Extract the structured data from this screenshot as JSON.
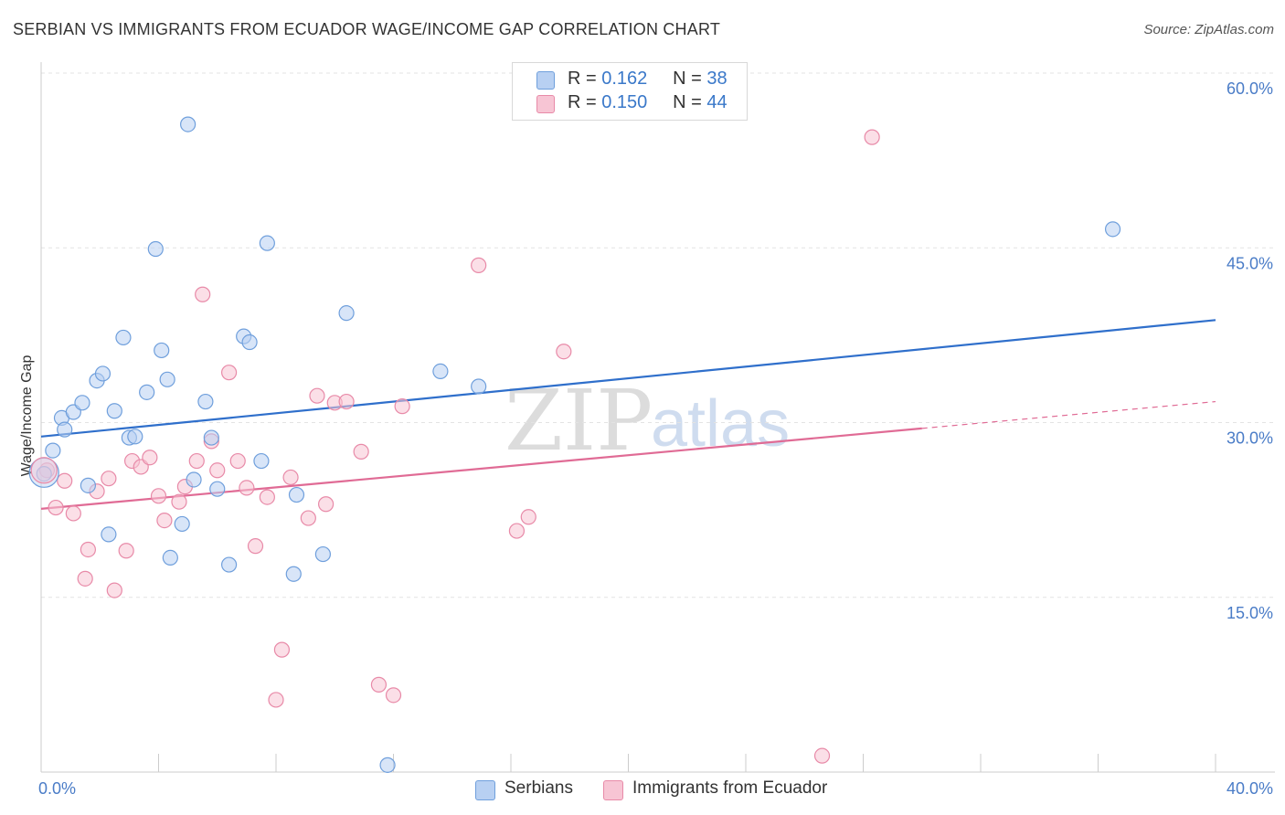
{
  "header": {
    "title": "SERBIAN VS IMMIGRANTS FROM ECUADOR WAGE/INCOME GAP CORRELATION CHART",
    "source": "Source: ZipAtlas.com"
  },
  "legend": {
    "rows": [
      {
        "r_label": "R =",
        "r_value": "0.162",
        "n_label": "N =",
        "n_value": "38"
      },
      {
        "r_label": "R =",
        "r_value": "0.150",
        "n_label": "N =",
        "n_value": "44"
      }
    ]
  },
  "bottom_legend": {
    "items": [
      {
        "label": "Serbians"
      },
      {
        "label": "Immigrants from Ecuador"
      }
    ]
  },
  "watermark": {
    "zip": "ZIP",
    "atlas": "atlas"
  },
  "colors": {
    "serbians_fill": "#b8d0f2",
    "serbians_stroke": "#6f9fdc",
    "serbians_line": "#2f6fcb",
    "ecuador_fill": "#f7c5d4",
    "ecuador_stroke": "#e88aa8",
    "ecuador_line": "#e06b95",
    "tick_text": "#4a7cc7",
    "grid": "#e3e3e3"
  },
  "chart_data": {
    "type": "scatter",
    "title": "SERBIAN VS IMMIGRANTS FROM ECUADOR WAGE/INCOME GAP CORRELATION CHART",
    "xlabel": "",
    "ylabel": "Wage/Income Gap",
    "xlim": [
      0,
      40
    ],
    "ylim": [
      0,
      60
    ],
    "x_tick_labels": [
      "0.0%",
      "40.0%"
    ],
    "y_ticks": [
      15,
      30,
      45,
      60
    ],
    "y_tick_labels": [
      "15.0%",
      "30.0%",
      "45.0%",
      "60.0%"
    ],
    "grid": true,
    "legend_position": "top-center",
    "series": [
      {
        "name": "Serbians",
        "r": 0.162,
        "n": 38,
        "trend": {
          "x0": 0,
          "y0": 28.8,
          "x1": 40,
          "y1": 38.8
        },
        "points": [
          [
            0.1,
            25.6
          ],
          [
            0.4,
            27.6
          ],
          [
            0.7,
            30.4
          ],
          [
            0.8,
            29.4
          ],
          [
            1.1,
            30.9
          ],
          [
            1.4,
            31.7
          ],
          [
            1.6,
            24.6
          ],
          [
            1.9,
            33.6
          ],
          [
            2.1,
            34.2
          ],
          [
            2.3,
            20.4
          ],
          [
            2.5,
            31.0
          ],
          [
            2.8,
            37.3
          ],
          [
            3.0,
            28.7
          ],
          [
            3.2,
            28.8
          ],
          [
            3.6,
            32.6
          ],
          [
            3.9,
            44.9
          ],
          [
            4.1,
            36.2
          ],
          [
            4.3,
            33.7
          ],
          [
            4.4,
            18.4
          ],
          [
            4.8,
            21.3
          ],
          [
            5.0,
            55.6
          ],
          [
            5.2,
            25.1
          ],
          [
            5.6,
            31.8
          ],
          [
            5.8,
            28.7
          ],
          [
            6.0,
            24.3
          ],
          [
            6.4,
            17.8
          ],
          [
            6.9,
            37.4
          ],
          [
            7.1,
            36.9
          ],
          [
            7.5,
            26.7
          ],
          [
            7.7,
            45.4
          ],
          [
            8.6,
            17.0
          ],
          [
            8.7,
            23.8
          ],
          [
            9.6,
            18.7
          ],
          [
            10.4,
            39.4
          ],
          [
            11.8,
            0.6
          ],
          [
            13.6,
            34.4
          ],
          [
            14.9,
            33.1
          ],
          [
            36.5,
            46.6
          ]
        ]
      },
      {
        "name": "Immigrants from Ecuador",
        "r": 0.15,
        "n": 44,
        "trend": {
          "x0": 0,
          "y0": 22.6,
          "x1": 30,
          "y1": 29.5
        },
        "trend_dashed": {
          "x0": 30,
          "y0": 29.5,
          "x1": 40,
          "y1": 31.8
        },
        "points": [
          [
            0.2,
            25.9
          ],
          [
            0.5,
            22.7
          ],
          [
            0.8,
            25.0
          ],
          [
            1.1,
            22.2
          ],
          [
            1.5,
            16.6
          ],
          [
            1.6,
            19.1
          ],
          [
            1.9,
            24.1
          ],
          [
            2.3,
            25.2
          ],
          [
            2.5,
            15.6
          ],
          [
            2.9,
            19.0
          ],
          [
            3.1,
            26.7
          ],
          [
            3.4,
            26.2
          ],
          [
            3.7,
            27.0
          ],
          [
            4.0,
            23.7
          ],
          [
            4.2,
            21.6
          ],
          [
            4.7,
            23.2
          ],
          [
            4.9,
            24.5
          ],
          [
            5.3,
            26.7
          ],
          [
            5.5,
            41.0
          ],
          [
            5.8,
            28.4
          ],
          [
            6.0,
            25.9
          ],
          [
            6.4,
            34.3
          ],
          [
            6.7,
            26.7
          ],
          [
            7.0,
            24.4
          ],
          [
            7.3,
            19.4
          ],
          [
            7.7,
            23.6
          ],
          [
            8.0,
            6.2
          ],
          [
            8.2,
            10.5
          ],
          [
            8.5,
            25.3
          ],
          [
            9.1,
            21.8
          ],
          [
            9.4,
            32.3
          ],
          [
            9.7,
            23.0
          ],
          [
            10.0,
            31.7
          ],
          [
            10.4,
            31.8
          ],
          [
            10.9,
            27.5
          ],
          [
            11.5,
            7.5
          ],
          [
            12.0,
            6.6
          ],
          [
            12.3,
            31.4
          ],
          [
            14.9,
            43.5
          ],
          [
            16.2,
            20.7
          ],
          [
            16.6,
            21.9
          ],
          [
            17.8,
            36.1
          ],
          [
            26.6,
            1.4
          ],
          [
            28.3,
            54.5
          ]
        ]
      }
    ]
  }
}
